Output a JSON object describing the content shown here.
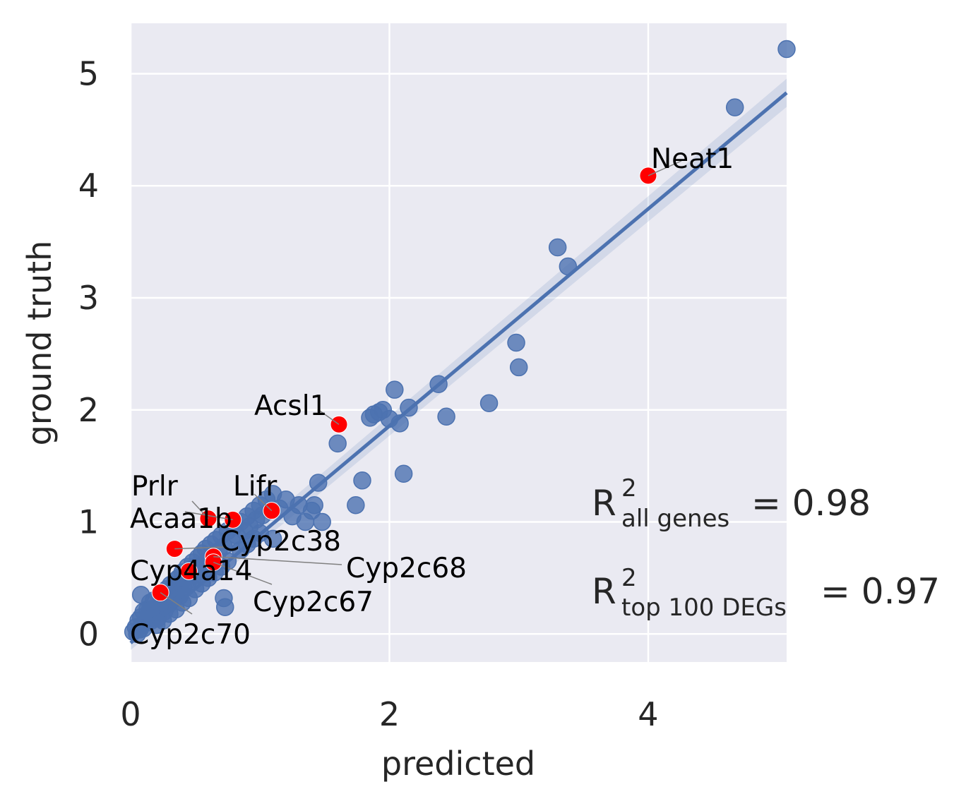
{
  "chart_data": {
    "type": "scatter",
    "title": "",
    "xlabel": "predicted",
    "ylabel": "ground truth",
    "xlim": [
      0,
      5.07
    ],
    "ylim": [
      -0.25,
      5.45
    ],
    "xticks": [
      0,
      2,
      4
    ],
    "yticks": [
      0,
      1,
      2,
      3,
      4,
      5
    ],
    "grid": true,
    "colors": {
      "background": "#eaeaf2",
      "points": "#4c72b0",
      "highlight": "#ff0000",
      "fit_line": "#4c72b0",
      "grid": "#ffffff"
    },
    "regression_line": {
      "x": [
        0,
        5.07
      ],
      "y": [
        -0.08,
        4.83
      ]
    },
    "points": [
      [
        0.02,
        0.02
      ],
      [
        0.04,
        0.06
      ],
      [
        0.05,
        0.0
      ],
      [
        0.06,
        0.12
      ],
      [
        0.07,
        0.04
      ],
      [
        0.08,
        0.15
      ],
      [
        0.09,
        0.08
      ],
      [
        0.1,
        0.2
      ],
      [
        0.1,
        0.05
      ],
      [
        0.12,
        0.1
      ],
      [
        0.13,
        0.22
      ],
      [
        0.14,
        0.15
      ],
      [
        0.15,
        0.28
      ],
      [
        0.16,
        0.12
      ],
      [
        0.17,
        0.2
      ],
      [
        0.18,
        0.3
      ],
      [
        0.19,
        0.18
      ],
      [
        0.2,
        0.25
      ],
      [
        0.21,
        0.14
      ],
      [
        0.22,
        0.32
      ],
      [
        0.23,
        0.22
      ],
      [
        0.24,
        0.28
      ],
      [
        0.25,
        0.36
      ],
      [
        0.26,
        0.2
      ],
      [
        0.27,
        0.3
      ],
      [
        0.28,
        0.4
      ],
      [
        0.29,
        0.26
      ],
      [
        0.3,
        0.34
      ],
      [
        0.31,
        0.44
      ],
      [
        0.32,
        0.3
      ],
      [
        0.33,
        0.42
      ],
      [
        0.34,
        0.36
      ],
      [
        0.35,
        0.48
      ],
      [
        0.36,
        0.4
      ],
      [
        0.37,
        0.5
      ],
      [
        0.38,
        0.34
      ],
      [
        0.39,
        0.46
      ],
      [
        0.4,
        0.55
      ],
      [
        0.41,
        0.42
      ],
      [
        0.42,
        0.5
      ],
      [
        0.44,
        0.6
      ],
      [
        0.45,
        0.48
      ],
      [
        0.46,
        0.56
      ],
      [
        0.48,
        0.64
      ],
      [
        0.49,
        0.52
      ],
      [
        0.5,
        0.6
      ],
      [
        0.52,
        0.68
      ],
      [
        0.53,
        0.56
      ],
      [
        0.55,
        0.72
      ],
      [
        0.56,
        0.62
      ],
      [
        0.58,
        0.76
      ],
      [
        0.6,
        0.66
      ],
      [
        0.62,
        0.8
      ],
      [
        0.64,
        0.7
      ],
      [
        0.66,
        0.84
      ],
      [
        0.68,
        0.74
      ],
      [
        0.7,
        0.88
      ],
      [
        0.72,
        0.78
      ],
      [
        0.75,
        0.92
      ],
      [
        0.78,
        0.84
      ],
      [
        0.8,
        0.96
      ],
      [
        0.82,
        0.88
      ],
      [
        0.85,
        1.0
      ],
      [
        0.88,
        0.92
      ],
      [
        0.9,
        1.05
      ],
      [
        0.92,
        0.96
      ],
      [
        0.95,
        1.1
      ],
      [
        0.97,
        1.02
      ],
      [
        1.0,
        1.15
      ],
      [
        1.02,
        1.06
      ],
      [
        1.05,
        1.2
      ],
      [
        1.08,
        1.1
      ],
      [
        1.1,
        1.25
      ],
      [
        1.15,
        1.12
      ],
      [
        1.2,
        1.2
      ],
      [
        1.25,
        1.05
      ],
      [
        1.3,
        1.15
      ],
      [
        1.35,
        1.0
      ],
      [
        1.4,
        1.1
      ],
      [
        1.42,
        1.15
      ],
      [
        1.45,
        1.35
      ],
      [
        1.48,
        1.0
      ],
      [
        0.08,
        0.35
      ],
      [
        0.15,
        0.22
      ],
      [
        0.2,
        0.08
      ],
      [
        0.25,
        0.12
      ],
      [
        0.3,
        0.18
      ],
      [
        0.35,
        0.22
      ],
      [
        0.4,
        0.28
      ],
      [
        0.45,
        0.32
      ],
      [
        0.5,
        0.4
      ],
      [
        0.55,
        0.45
      ],
      [
        0.6,
        0.5
      ],
      [
        0.65,
        0.55
      ],
      [
        0.7,
        0.6
      ],
      [
        0.75,
        0.65
      ],
      [
        0.72,
        0.32
      ],
      [
        0.73,
        0.24
      ],
      [
        0.85,
        0.75
      ],
      [
        0.9,
        0.8
      ],
      [
        0.95,
        0.85
      ],
      [
        1.0,
        0.9
      ],
      [
        1.1,
        0.85
      ],
      [
        1.6,
        1.7
      ],
      [
        1.74,
        1.15
      ],
      [
        1.79,
        1.37
      ],
      [
        1.85,
        1.93
      ],
      [
        1.88,
        1.96
      ],
      [
        1.92,
        1.98
      ],
      [
        1.95,
        2.0
      ],
      [
        2.0,
        1.92
      ],
      [
        2.04,
        2.18
      ],
      [
        2.08,
        1.88
      ],
      [
        2.11,
        1.43
      ],
      [
        2.15,
        2.02
      ],
      [
        2.38,
        2.23
      ],
      [
        2.44,
        1.94
      ],
      [
        2.77,
        2.06
      ],
      [
        2.98,
        2.6
      ],
      [
        3.0,
        2.38
      ],
      [
        3.3,
        3.45
      ],
      [
        3.38,
        3.28
      ],
      [
        4.67,
        4.7
      ],
      [
        5.07,
        5.22
      ]
    ],
    "highlighted_genes": [
      {
        "name": "Neat1",
        "x": 4.0,
        "y": 4.09
      },
      {
        "name": "Acsl1",
        "x": 1.61,
        "y": 1.87
      },
      {
        "name": "Lifr",
        "x": 1.09,
        "y": 1.1
      },
      {
        "name": "Prlr",
        "x": 0.6,
        "y": 1.03
      },
      {
        "name": "Acaa1b",
        "x": 0.79,
        "y": 1.02
      },
      {
        "name": "Cyp2c38",
        "x": 0.34,
        "y": 0.76
      },
      {
        "name": "Cyp2c68",
        "x": 0.64,
        "y": 0.69
      },
      {
        "name": "Cyp4a14",
        "x": 0.45,
        "y": 0.56
      },
      {
        "name": "Cyp2c67",
        "x": 0.64,
        "y": 0.64
      },
      {
        "name": "Cyp2c70",
        "x": 0.23,
        "y": 0.37
      }
    ],
    "annotations": {
      "r2_all_prefix": "R",
      "r2_all_sup": "2",
      "r2_all_sub": "all genes",
      "r2_all_value": "= 0.98",
      "r2_top_prefix": "R",
      "r2_top_sup": "2",
      "r2_top_sub": "top 100 DEGs",
      "r2_top_value": "= 0.97"
    }
  }
}
